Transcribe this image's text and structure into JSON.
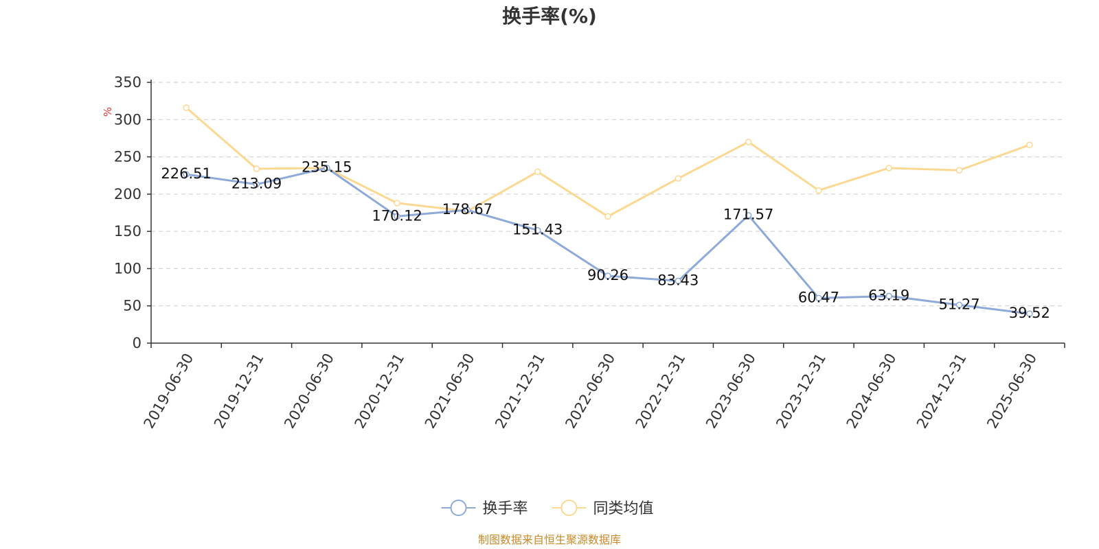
{
  "chart_data": {
    "type": "line",
    "title": "换手率(%)",
    "ylabel": "%",
    "xlabel": "",
    "ylim": [
      0,
      350
    ],
    "yticks": [
      0,
      50,
      100,
      150,
      200,
      250,
      300,
      350
    ],
    "grid": true,
    "legend_position": "bottom-center",
    "categories": [
      "2019-06-30",
      "2019-12-31",
      "2020-06-30",
      "2020-12-31",
      "2021-06-30",
      "2021-12-31",
      "2022-06-30",
      "2022-12-31",
      "2023-06-30",
      "2023-12-31",
      "2024-06-30",
      "2024-12-31",
      "2025-06-30"
    ],
    "series": [
      {
        "name": "换手率",
        "color": "#8eaad8",
        "values": [
          226.51,
          213.09,
          235.15,
          170.12,
          178.67,
          151.43,
          90.26,
          83.43,
          171.57,
          60.47,
          63.19,
          51.27,
          39.52
        ],
        "labels": [
          "226.51",
          "213.09",
          "235.15",
          "170.12",
          "178.67",
          "151.43",
          "90.26",
          "83.43",
          "171.57",
          "60.47",
          "63.19",
          "51.27",
          "39.52"
        ]
      },
      {
        "name": "同类均值",
        "color": "#fcd993",
        "values": [
          316,
          234,
          235,
          188,
          177,
          230,
          170,
          221,
          270,
          205,
          235,
          232,
          266
        ]
      }
    ]
  },
  "source_note": "制图数据来自恒生聚源数据库"
}
